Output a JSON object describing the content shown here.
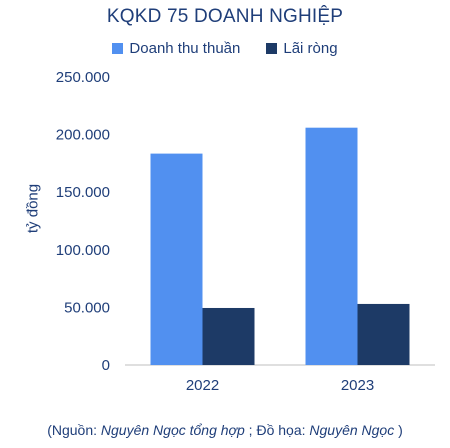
{
  "chart_data": {
    "type": "bar",
    "title": "KQKD 75 DOANH NGHIỆP",
    "xlabel": "",
    "ylabel": "tỷ đồng",
    "categories": [
      "2022",
      "2023"
    ],
    "series": [
      {
        "name": "Doanh thu thuần",
        "values": [
          183500,
          206000
        ],
        "color": "#5190f0"
      },
      {
        "name": "Lãi ròng",
        "values": [
          49500,
          53000
        ],
        "color": "#1d3a66"
      }
    ],
    "ylim": [
      0,
      250000
    ],
    "yticks": [
      0,
      50000,
      100000,
      150000,
      200000,
      250000
    ],
    "ytick_labels": [
      "0",
      "50.000",
      "100.000",
      "150.000",
      "200.000",
      "250.000"
    ],
    "grid": false,
    "legend_position": "top"
  },
  "source": {
    "prefix": "(Nguồn: ",
    "source_name": "Nguyên Ngọc tổng hợp",
    "middle": " ; Đồ họa: ",
    "designer": "Nguyên Ngọc",
    "suffix": " )"
  },
  "colors": {
    "text": "#1f3e79",
    "axis": "#bfbfbf"
  }
}
